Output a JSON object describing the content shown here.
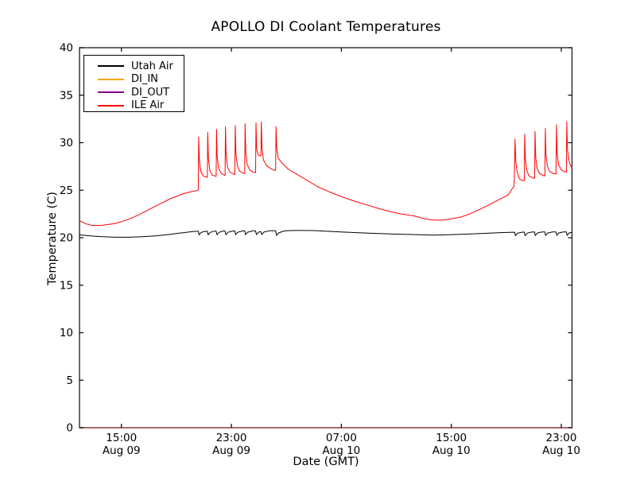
{
  "chart_data": {
    "type": "line",
    "title": "APOLLO DI Coolant Temperatures",
    "xlabel": "Date (GMT)",
    "ylabel": "Temperature (C)",
    "ylim": [
      0,
      40
    ],
    "yticks": [
      0,
      5,
      10,
      15,
      20,
      25,
      30,
      35,
      40
    ],
    "xlim_hours": [
      0,
      35.83
    ],
    "xticks": [
      {
        "t": 3.05,
        "time": "15:00",
        "date": "Aug 09"
      },
      {
        "t": 11.05,
        "time": "23:00",
        "date": "Aug 09"
      },
      {
        "t": 19.05,
        "time": "07:00",
        "date": "Aug 10"
      },
      {
        "t": 27.05,
        "time": "15:00",
        "date": "Aug 10"
      },
      {
        "t": 35.05,
        "time": "23:00",
        "date": "Aug 10"
      }
    ],
    "grid": false,
    "legend_position": "upper left",
    "frame_color": "#1a1a1a",
    "background": "#ffffff",
    "series": [
      {
        "name": "Utah Air",
        "color": "#000000",
        "width": 1.0,
        "opacity": 1,
        "points": [
          [
            0,
            20.3
          ],
          [
            0.8,
            20.18
          ],
          [
            1.7,
            20.1
          ],
          [
            2.6,
            20.05
          ],
          [
            3.6,
            20.05
          ],
          [
            4.6,
            20.1
          ],
          [
            5.6,
            20.2
          ],
          [
            6.6,
            20.35
          ],
          [
            7.4,
            20.5
          ],
          [
            8.0,
            20.6
          ],
          [
            8.5,
            20.68
          ],
          [
            8.65,
            20.68
          ],
          [
            8.7,
            20.3
          ],
          [
            8.85,
            20.55
          ],
          [
            9.1,
            20.66
          ],
          [
            9.3,
            20.68
          ],
          [
            9.36,
            20.3
          ],
          [
            9.51,
            20.56
          ],
          [
            9.8,
            20.69
          ],
          [
            9.94,
            20.69
          ],
          [
            10.0,
            20.31
          ],
          [
            10.15,
            20.56
          ],
          [
            10.45,
            20.7
          ],
          [
            10.59,
            20.7
          ],
          [
            10.65,
            20.31
          ],
          [
            10.8,
            20.57
          ],
          [
            11.15,
            20.7
          ],
          [
            11.3,
            20.71
          ],
          [
            11.36,
            20.32
          ],
          [
            11.51,
            20.57
          ],
          [
            11.85,
            20.71
          ],
          [
            12.02,
            20.71
          ],
          [
            12.08,
            20.32
          ],
          [
            12.23,
            20.58
          ],
          [
            12.6,
            20.72
          ],
          [
            12.81,
            20.72
          ],
          [
            12.87,
            20.33
          ],
          [
            13.02,
            20.58
          ],
          [
            13.2,
            20.65
          ],
          [
            13.26,
            20.33
          ],
          [
            13.41,
            20.59
          ],
          [
            13.8,
            20.73
          ],
          [
            14.27,
            20.74
          ],
          [
            14.33,
            20.25
          ],
          [
            14.5,
            20.5
          ],
          [
            14.85,
            20.7
          ],
          [
            15.3,
            20.75
          ],
          [
            16,
            20.76
          ],
          [
            17,
            20.75
          ],
          [
            18,
            20.68
          ],
          [
            19,
            20.6
          ],
          [
            20,
            20.54
          ],
          [
            21,
            20.48
          ],
          [
            22,
            20.43
          ],
          [
            23,
            20.38
          ],
          [
            24,
            20.34
          ],
          [
            25,
            20.3
          ],
          [
            25.8,
            20.28
          ],
          [
            26.6,
            20.3
          ],
          [
            27.5,
            20.34
          ],
          [
            28.5,
            20.4
          ],
          [
            29.5,
            20.46
          ],
          [
            30.5,
            20.52
          ],
          [
            31.3,
            20.57
          ],
          [
            31.66,
            20.58
          ],
          [
            31.71,
            20.22
          ],
          [
            31.86,
            20.48
          ],
          [
            32.2,
            20.58
          ],
          [
            32.36,
            20.59
          ],
          [
            32.41,
            20.22
          ],
          [
            32.56,
            20.48
          ],
          [
            32.9,
            20.59
          ],
          [
            33.11,
            20.6
          ],
          [
            33.16,
            20.23
          ],
          [
            33.31,
            20.49
          ],
          [
            33.65,
            20.6
          ],
          [
            33.86,
            20.6
          ],
          [
            33.91,
            20.23
          ],
          [
            34.06,
            20.49
          ],
          [
            34.4,
            20.6
          ],
          [
            34.67,
            20.61
          ],
          [
            34.72,
            20.24
          ],
          [
            34.87,
            20.5
          ],
          [
            35.2,
            20.61
          ],
          [
            35.42,
            20.61
          ],
          [
            35.47,
            20.24
          ],
          [
            35.62,
            20.5
          ],
          [
            35.83,
            20.56
          ]
        ]
      },
      {
        "name": "DI_IN",
        "color": "#ffa500",
        "width": 1.2,
        "opacity": 0.65,
        "points": [
          [
            0,
            0
          ],
          [
            35.83,
            0
          ]
        ]
      },
      {
        "name": "DI_OUT",
        "color": "#800080",
        "width": 1.2,
        "opacity": 0.55,
        "points": [
          [
            0,
            0
          ],
          [
            35.83,
            0
          ]
        ]
      },
      {
        "name": "ILE Air",
        "color": "#ff0000",
        "width": 1.0,
        "opacity": 1,
        "points": [
          [
            0,
            21.8
          ],
          [
            0.5,
            21.45
          ],
          [
            0.9,
            21.3
          ],
          [
            1.6,
            21.3
          ],
          [
            2.6,
            21.5
          ],
          [
            3.5,
            21.9
          ],
          [
            4.3,
            22.4
          ],
          [
            5.5,
            23.3
          ],
          [
            6.6,
            24.1
          ],
          [
            7.5,
            24.6
          ],
          [
            8.0,
            24.8
          ],
          [
            8.55,
            24.95
          ],
          [
            8.64,
            25.05
          ],
          [
            8.67,
            30.6
          ],
          [
            8.72,
            28.1
          ],
          [
            8.82,
            27.0
          ],
          [
            9.0,
            26.5
          ],
          [
            9.2,
            26.4
          ],
          [
            9.3,
            26.35
          ],
          [
            9.33,
            31.1
          ],
          [
            9.38,
            28.3
          ],
          [
            9.48,
            27.1
          ],
          [
            9.65,
            26.6
          ],
          [
            9.85,
            26.5
          ],
          [
            9.94,
            26.45
          ],
          [
            9.97,
            31.4
          ],
          [
            10.02,
            28.5
          ],
          [
            10.12,
            27.3
          ],
          [
            10.3,
            26.8
          ],
          [
            10.5,
            26.6
          ],
          [
            10.59,
            26.55
          ],
          [
            10.62,
            31.7
          ],
          [
            10.67,
            28.6
          ],
          [
            10.77,
            27.4
          ],
          [
            10.95,
            26.9
          ],
          [
            11.2,
            26.7
          ],
          [
            11.3,
            26.65
          ],
          [
            11.33,
            31.8
          ],
          [
            11.38,
            28.8
          ],
          [
            11.48,
            27.6
          ],
          [
            11.65,
            27.0
          ],
          [
            11.9,
            26.8
          ],
          [
            12.02,
            26.75
          ],
          [
            12.05,
            32.0
          ],
          [
            12.1,
            28.9
          ],
          [
            12.2,
            27.7
          ],
          [
            12.4,
            27.1
          ],
          [
            12.65,
            26.9
          ],
          [
            12.81,
            26.85
          ],
          [
            12.84,
            32.1
          ],
          [
            12.89,
            29.3
          ],
          [
            13.0,
            28.7
          ],
          [
            13.2,
            28.6
          ],
          [
            13.23,
            32.2
          ],
          [
            13.28,
            29.4
          ],
          [
            13.38,
            28.2
          ],
          [
            13.6,
            27.6
          ],
          [
            13.9,
            27.3
          ],
          [
            14.1,
            27.15
          ],
          [
            14.27,
            27.1
          ],
          [
            14.3,
            31.7
          ],
          [
            14.35,
            29.4
          ],
          [
            14.45,
            28.4
          ],
          [
            14.7,
            27.9
          ],
          [
            15.2,
            27.2
          ],
          [
            15.9,
            26.6
          ],
          [
            16.6,
            26.0
          ],
          [
            17.3,
            25.4
          ],
          [
            18.2,
            24.8
          ],
          [
            19.1,
            24.3
          ],
          [
            20,
            23.85
          ],
          [
            20.8,
            23.5
          ],
          [
            21.7,
            23.1
          ],
          [
            22.6,
            22.75
          ],
          [
            23.4,
            22.5
          ],
          [
            24.3,
            22.3
          ],
          [
            25.1,
            22.0
          ],
          [
            25.8,
            21.85
          ],
          [
            26.4,
            21.85
          ],
          [
            27.1,
            22.0
          ],
          [
            27.8,
            22.2
          ],
          [
            28.4,
            22.5
          ],
          [
            28.9,
            22.85
          ],
          [
            29.5,
            23.25
          ],
          [
            30.1,
            23.7
          ],
          [
            30.7,
            24.15
          ],
          [
            31.2,
            24.5
          ],
          [
            31.5,
            25.2
          ],
          [
            31.62,
            25.45
          ],
          [
            31.69,
            30.4
          ],
          [
            31.74,
            28.0
          ],
          [
            31.84,
            26.9
          ],
          [
            32.0,
            26.2
          ],
          [
            32.2,
            26.05
          ],
          [
            32.36,
            26.0
          ],
          [
            32.39,
            30.9
          ],
          [
            32.44,
            28.2
          ],
          [
            32.54,
            27.1
          ],
          [
            32.7,
            26.5
          ],
          [
            32.95,
            26.3
          ],
          [
            33.11,
            26.25
          ],
          [
            33.14,
            31.2
          ],
          [
            33.19,
            28.4
          ],
          [
            33.29,
            27.3
          ],
          [
            33.45,
            26.8
          ],
          [
            33.7,
            26.55
          ],
          [
            33.86,
            26.5
          ],
          [
            33.89,
            31.5
          ],
          [
            33.94,
            28.6
          ],
          [
            34.04,
            27.5
          ],
          [
            34.2,
            27.0
          ],
          [
            34.45,
            26.75
          ],
          [
            34.67,
            26.7
          ],
          [
            34.7,
            31.9
          ],
          [
            34.75,
            28.8
          ],
          [
            34.85,
            27.7
          ],
          [
            35.05,
            27.15
          ],
          [
            35.3,
            26.95
          ],
          [
            35.42,
            26.9
          ],
          [
            35.45,
            32.2
          ],
          [
            35.5,
            29.3
          ],
          [
            35.6,
            28.2
          ],
          [
            35.72,
            27.6
          ],
          [
            35.83,
            27.35
          ]
        ]
      }
    ]
  }
}
